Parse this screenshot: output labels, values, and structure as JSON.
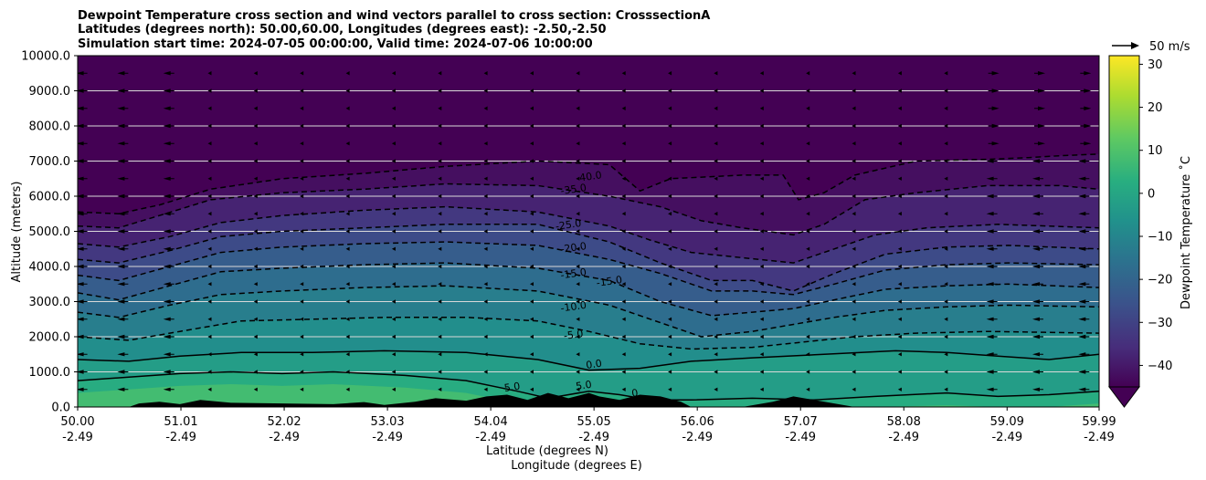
{
  "chart_data": {
    "type": "heatmap",
    "title_lines": [
      "Dewpoint Temperature cross section and wind vectors parallel to cross section: CrosssectionA",
      "Latitudes (degrees north): 50.00,60.00, Longitudes (degrees east): -2.50,-2.50",
      "Simulation start time: 2024-07-05 00:00:00, Valid time: 2024-07-06 10:00:00"
    ],
    "xlabel_lines": [
      "Latitude (degrees N)",
      "Longitude (degrees E)"
    ],
    "ylabel": "Altitude (meters)",
    "xlim": [
      50.0,
      59.99
    ],
    "ylim": [
      0,
      10000
    ],
    "x_ticks": [
      {
        "lat": "50.00",
        "lon": "-2.49",
        "value": 50.0
      },
      {
        "lat": "51.01",
        "lon": "-2.49",
        "value": 51.01
      },
      {
        "lat": "52.02",
        "lon": "-2.49",
        "value": 52.02
      },
      {
        "lat": "53.03",
        "lon": "-2.49",
        "value": 53.03
      },
      {
        "lat": "54.04",
        "lon": "-2.49",
        "value": 54.04
      },
      {
        "lat": "55.05",
        "lon": "-2.49",
        "value": 55.05
      },
      {
        "lat": "56.06",
        "lon": "-2.49",
        "value": 56.06
      },
      {
        "lat": "57.07",
        "lon": "-2.49",
        "value": 57.07
      },
      {
        "lat": "58.08",
        "lon": "-2.49",
        "value": 58.08
      },
      {
        "lat": "59.09",
        "lon": "-2.49",
        "value": 59.09
      },
      {
        "lat": "59.99",
        "lon": "-2.49",
        "value": 59.99
      }
    ],
    "y_ticks": [
      "0.0",
      "1000.0",
      "2000.0",
      "3000.0",
      "4000.0",
      "5000.0",
      "6000.0",
      "7000.0",
      "8000.0",
      "9000.0",
      "10000.0"
    ],
    "y_tick_values": [
      0,
      1000,
      2000,
      3000,
      4000,
      5000,
      6000,
      7000,
      8000,
      9000,
      10000
    ],
    "grid": "horizontal",
    "colorbar": {
      "label": "Dewpoint Temperature ˚C",
      "range": [
        -45,
        32
      ],
      "extend": "min",
      "colormap": "viridis",
      "ticks": [
        "30",
        "20",
        "10",
        "0",
        "−10",
        "−20",
        "−30",
        "−40"
      ],
      "tick_values": [
        30,
        20,
        10,
        0,
        -10,
        -20,
        -30,
        -40
      ]
    },
    "quiver_key": "50 m/s",
    "contour_levels": [
      -40,
      -35,
      -30,
      -25,
      -20,
      -15,
      -10,
      -5,
      0,
      5
    ],
    "contours": [
      {
        "level": -40,
        "style": "dashed",
        "label": "-40.0",
        "points": [
          [
            50.0,
            5550
          ],
          [
            50.4,
            5500
          ],
          [
            50.8,
            5750
          ],
          [
            51.3,
            6200
          ],
          [
            52.0,
            6500
          ],
          [
            52.8,
            6650
          ],
          [
            53.6,
            6850
          ],
          [
            54.5,
            7000
          ],
          [
            55.2,
            6900
          ],
          [
            55.5,
            6150
          ],
          [
            55.8,
            6500
          ],
          [
            56.5,
            6600
          ],
          [
            56.9,
            6600
          ],
          [
            57.05,
            5900
          ],
          [
            57.3,
            6100
          ],
          [
            57.6,
            6600
          ],
          [
            58.2,
            7000
          ],
          [
            58.9,
            7050
          ],
          [
            59.3,
            7100
          ],
          [
            59.6,
            7150
          ],
          [
            59.99,
            7200
          ]
        ]
      },
      {
        "level": -35,
        "style": "dashed",
        "label": "-35.0",
        "points": [
          [
            50.0,
            5150
          ],
          [
            50.4,
            5100
          ],
          [
            50.8,
            5450
          ],
          [
            51.3,
            5900
          ],
          [
            52.0,
            6100
          ],
          [
            52.8,
            6200
          ],
          [
            53.6,
            6350
          ],
          [
            54.5,
            6300
          ],
          [
            55.2,
            6000
          ],
          [
            55.7,
            5700
          ],
          [
            56.1,
            5300
          ],
          [
            56.5,
            5100
          ],
          [
            57.0,
            4900
          ],
          [
            57.3,
            5200
          ],
          [
            57.7,
            5900
          ],
          [
            58.2,
            6100
          ],
          [
            58.9,
            6300
          ],
          [
            59.6,
            6300
          ],
          [
            59.99,
            6200
          ]
        ]
      },
      {
        "level": -30,
        "style": "dashed",
        "label": "",
        "points": [
          [
            50.0,
            4650
          ],
          [
            50.4,
            4550
          ],
          [
            50.9,
            4850
          ],
          [
            51.4,
            5250
          ],
          [
            52.0,
            5450
          ],
          [
            52.8,
            5600
          ],
          [
            53.6,
            5700
          ],
          [
            54.5,
            5550
          ],
          [
            55.2,
            5150
          ],
          [
            55.6,
            4750
          ],
          [
            56.0,
            4400
          ],
          [
            56.5,
            4250
          ],
          [
            57.0,
            4100
          ],
          [
            57.4,
            4500
          ],
          [
            57.8,
            4900
          ],
          [
            58.3,
            5100
          ],
          [
            59.0,
            5200
          ],
          [
            59.99,
            5100
          ]
        ]
      },
      {
        "level": -25,
        "style": "dashed",
        "label": "-25.0",
        "points": [
          [
            50.0,
            4200
          ],
          [
            50.4,
            4100
          ],
          [
            50.9,
            4450
          ],
          [
            51.4,
            4850
          ],
          [
            52.0,
            5000
          ],
          [
            52.8,
            5100
          ],
          [
            53.6,
            5200
          ],
          [
            54.5,
            5200
          ],
          [
            55.2,
            4700
          ],
          [
            55.7,
            4100
          ],
          [
            56.2,
            3600
          ],
          [
            56.6,
            3600
          ],
          [
            57.0,
            3300
          ],
          [
            57.4,
            3800
          ],
          [
            57.9,
            4350
          ],
          [
            58.5,
            4550
          ],
          [
            59.1,
            4600
          ],
          [
            59.99,
            4500
          ]
        ]
      },
      {
        "level": -20,
        "style": "dashed",
        "label": "-20.0",
        "points": [
          [
            50.0,
            3750
          ],
          [
            50.4,
            3600
          ],
          [
            50.9,
            4000
          ],
          [
            51.4,
            4400
          ],
          [
            52.0,
            4550
          ],
          [
            52.8,
            4650
          ],
          [
            53.6,
            4700
          ],
          [
            54.5,
            4600
          ],
          [
            55.2,
            4200
          ],
          [
            55.7,
            3800
          ],
          [
            56.2,
            3300
          ],
          [
            56.6,
            3300
          ],
          [
            57.0,
            3200
          ],
          [
            57.4,
            3500
          ],
          [
            57.9,
            3900
          ],
          [
            58.5,
            4050
          ],
          [
            59.1,
            4100
          ],
          [
            59.99,
            4050
          ]
        ]
      },
      {
        "level": -15,
        "style": "dashed",
        "label": "-15.0",
        "points": [
          [
            50.0,
            3250
          ],
          [
            50.4,
            3050
          ],
          [
            50.9,
            3450
          ],
          [
            51.4,
            3850
          ],
          [
            52.0,
            3950
          ],
          [
            52.8,
            4050
          ],
          [
            53.6,
            4100
          ],
          [
            54.5,
            3950
          ],
          [
            55.2,
            3600
          ],
          [
            55.7,
            3000
          ],
          [
            56.2,
            2600
          ],
          [
            56.6,
            2700
          ],
          [
            57.0,
            2800
          ],
          [
            57.4,
            3050
          ],
          [
            57.9,
            3350
          ],
          [
            58.5,
            3450
          ],
          [
            59.1,
            3500
          ],
          [
            59.99,
            3400
          ]
        ]
      },
      {
        "level": -10,
        "style": "dashed",
        "label": "-10.0",
        "points": [
          [
            50.0,
            2700
          ],
          [
            50.4,
            2550
          ],
          [
            50.9,
            2900
          ],
          [
            51.4,
            3200
          ],
          [
            52.0,
            3300
          ],
          [
            52.8,
            3400
          ],
          [
            53.6,
            3450
          ],
          [
            54.5,
            3300
          ],
          [
            55.2,
            2900
          ],
          [
            55.7,
            2400
          ],
          [
            56.1,
            2000
          ],
          [
            56.6,
            2150
          ],
          [
            57.0,
            2350
          ],
          [
            57.4,
            2550
          ],
          [
            57.9,
            2750
          ],
          [
            58.5,
            2850
          ],
          [
            59.1,
            2900
          ],
          [
            59.99,
            2850
          ]
        ]
      },
      {
        "level": -5,
        "style": "dashed",
        "label": "-5.0",
        "points": [
          [
            50.0,
            2000
          ],
          [
            50.5,
            1900
          ],
          [
            51.0,
            2150
          ],
          [
            51.6,
            2450
          ],
          [
            52.3,
            2500
          ],
          [
            53.0,
            2550
          ],
          [
            53.8,
            2550
          ],
          [
            54.5,
            2450
          ],
          [
            55.0,
            2150
          ],
          [
            55.5,
            1800
          ],
          [
            56.0,
            1650
          ],
          [
            56.6,
            1700
          ],
          [
            57.1,
            1850
          ],
          [
            57.6,
            2000
          ],
          [
            58.2,
            2100
          ],
          [
            58.9,
            2150
          ],
          [
            59.99,
            2100
          ]
        ]
      },
      {
        "level": 0,
        "style": "solid",
        "label": "0.0",
        "points": [
          [
            50.0,
            1350
          ],
          [
            50.5,
            1300
          ],
          [
            51.0,
            1450
          ],
          [
            51.6,
            1550
          ],
          [
            52.3,
            1550
          ],
          [
            53.0,
            1600
          ],
          [
            53.8,
            1550
          ],
          [
            54.5,
            1350
          ],
          [
            55.0,
            1050
          ],
          [
            55.5,
            1100
          ],
          [
            56.0,
            1300
          ],
          [
            56.6,
            1400
          ],
          [
            57.3,
            1500
          ],
          [
            58.0,
            1600
          ],
          [
            58.5,
            1550
          ],
          [
            59.0,
            1450
          ],
          [
            59.5,
            1350
          ],
          [
            59.99,
            1500
          ]
        ]
      },
      {
        "level": 5,
        "style": "solid",
        "label": "5.0",
        "points": [
          [
            50.0,
            750
          ],
          [
            50.5,
            850
          ],
          [
            51.0,
            950
          ],
          [
            51.5,
            1000
          ],
          [
            52.0,
            950
          ],
          [
            52.5,
            1000
          ],
          [
            53.2,
            900
          ],
          [
            53.8,
            750
          ],
          [
            54.3,
            450
          ],
          [
            54.6,
            250
          ],
          [
            55.0,
            450
          ],
          [
            55.3,
            350
          ],
          [
            55.6,
            200
          ],
          [
            56.0,
            200
          ],
          [
            56.6,
            250
          ],
          [
            57.2,
            200
          ],
          [
            57.8,
            300
          ],
          [
            58.5,
            400
          ],
          [
            59.0,
            300
          ],
          [
            59.5,
            350
          ],
          [
            59.99,
            450
          ]
        ]
      }
    ],
    "contour_label_positions": [
      {
        "text": "-40.0",
        "x": 55.0,
        "y": 6540
      },
      {
        "text": "-35.0",
        "x": 54.85,
        "y": 6180
      },
      {
        "text": "-25.0",
        "x": 54.8,
        "y": 5170
      },
      {
        "text": "-20.0",
        "x": 54.85,
        "y": 4520
      },
      {
        "text": "-15.0",
        "x": 54.85,
        "y": 3780
      },
      {
        "text": "-15.0",
        "x": 55.2,
        "y": 3560
      },
      {
        "text": "-10.0",
        "x": 54.85,
        "y": 2840
      },
      {
        "text": "-5.0",
        "x": 54.85,
        "y": 2040
      },
      {
        "text": "0.0",
        "x": 55.05,
        "y": 1200
      },
      {
        "text": "5.0",
        "x": 54.25,
        "y": 550
      },
      {
        "text": "5.0",
        "x": 54.95,
        "y": 600
      },
      {
        "text": "0",
        "x": 55.45,
        "y": 380
      }
    ],
    "terrain": [
      [
        50.0,
        0
      ],
      [
        50.5,
        0
      ],
      [
        50.6,
        100
      ],
      [
        50.8,
        150
      ],
      [
        51.0,
        80
      ],
      [
        51.2,
        200
      ],
      [
        51.5,
        120
      ],
      [
        52.0,
        100
      ],
      [
        52.5,
        80
      ],
      [
        52.8,
        140
      ],
      [
        53.0,
        60
      ],
      [
        53.3,
        150
      ],
      [
        53.5,
        250
      ],
      [
        53.8,
        180
      ],
      [
        54.0,
        300
      ],
      [
        54.2,
        350
      ],
      [
        54.4,
        200
      ],
      [
        54.6,
        400
      ],
      [
        54.8,
        250
      ],
      [
        55.0,
        400
      ],
      [
        55.1,
        300
      ],
      [
        55.3,
        200
      ],
      [
        55.5,
        350
      ],
      [
        55.7,
        300
      ],
      [
        55.9,
        150
      ],
      [
        56.0,
        0
      ],
      [
        56.5,
        0
      ],
      [
        56.8,
        150
      ],
      [
        57.0,
        300
      ],
      [
        57.2,
        200
      ],
      [
        57.4,
        100
      ],
      [
        57.6,
        0
      ],
      [
        59.99,
        0
      ]
    ],
    "wind_arrows": {
      "columns_lat": [
        50.05,
        50.45,
        50.9,
        51.3,
        51.75,
        52.2,
        52.65,
        53.1,
        53.55,
        54.0,
        54.45,
        54.9,
        55.35,
        55.8,
        56.25,
        56.7,
        57.15,
        57.6,
        58.05,
        58.5,
        58.95,
        59.4,
        59.85
      ],
      "rows_alt": [
        500,
        1000,
        1500,
        2000,
        2500,
        3000,
        3500,
        4000,
        4500,
        5000,
        5500,
        6000,
        6500,
        7000,
        7500,
        8000,
        8500,
        9000,
        9500
      ]
    }
  }
}
